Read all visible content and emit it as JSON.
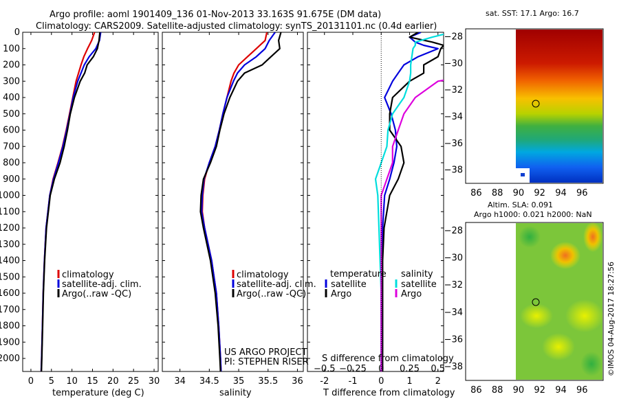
{
  "header": {
    "title_line1": "Argo profile: aoml 1901409_136 01-Nov-2013 33.163S 91.675E (DM data)",
    "title_line2": "Climatology: CARS2009. Satellite-adjusted climatology: synTS_20131101.nc (0.4d earlier)"
  },
  "colors": {
    "clim": "#dd0000",
    "sat": "#0000dd",
    "argo": "#000000",
    "sal_sat": "#00dddd",
    "sal_argo": "#dd00dd"
  },
  "chart_data": [
    {
      "type": "line",
      "id": "temperature",
      "xlabel": "temperature (deg C)",
      "ylabel": "",
      "xlim": [
        -2,
        31
      ],
      "ylim": [
        2080,
        0
      ],
      "xticks": [
        0,
        5,
        10,
        15,
        20,
        25,
        30
      ],
      "yticks": [
        0,
        100,
        200,
        300,
        400,
        500,
        600,
        700,
        800,
        900,
        1000,
        1100,
        1200,
        1300,
        1400,
        1500,
        1600,
        1700,
        1800,
        1900,
        2000
      ],
      "legend": [
        "climatology",
        "satellite-adj. clim.",
        "Argo(..raw -QC)"
      ],
      "depth": [
        0,
        50,
        100,
        150,
        200,
        250,
        300,
        400,
        500,
        600,
        700,
        800,
        900,
        1000,
        1200,
        1400,
        1600,
        1800,
        2000,
        2080
      ],
      "series": [
        {
          "name": "climatology",
          "color_key": "clim",
          "values": [
            15.5,
            14.8,
            13.8,
            12.9,
            12.2,
            11.6,
            11.0,
            10.2,
            9.4,
            8.6,
            7.7,
            6.6,
            5.4,
            4.6,
            3.7,
            3.3,
            3.0,
            2.8,
            2.6,
            2.5
          ]
        },
        {
          "name": "satellite-adj. clim.",
          "color_key": "sat",
          "values": [
            17.0,
            16.7,
            15.8,
            14.2,
            13.0,
            12.2,
            11.4,
            10.3,
            9.5,
            8.7,
            7.8,
            6.7,
            5.5,
            4.6,
            3.7,
            3.3,
            3.0,
            2.8,
            2.6,
            2.5
          ]
        },
        {
          "name": "Argo(..raw -QC)",
          "color_key": "argo",
          "values": [
            16.8,
            16.6,
            16.2,
            15.2,
            13.7,
            13.1,
            12.0,
            10.6,
            9.6,
            8.9,
            8.1,
            7.1,
            5.7,
            4.7,
            3.8,
            3.35,
            3.05,
            2.85,
            2.65,
            2.55
          ]
        }
      ]
    },
    {
      "type": "line",
      "id": "salinity",
      "xlabel": "salinity",
      "xlim": [
        33.7,
        36.1
      ],
      "ylim": [
        2080,
        0
      ],
      "xticks": [
        34,
        34.5,
        35,
        35.5,
        36
      ],
      "legend": [
        "climatology",
        "satellite-adj. clim.",
        "Argo(..raw -QC)"
      ],
      "depth": [
        0,
        50,
        100,
        150,
        200,
        250,
        300,
        400,
        500,
        600,
        700,
        800,
        900,
        1000,
        1100,
        1200,
        1400,
        1600,
        1800,
        2000,
        2080
      ],
      "series": [
        {
          "name": "climatology",
          "color_key": "clim",
          "values": [
            35.48,
            35.45,
            35.3,
            35.15,
            35.0,
            34.92,
            34.87,
            34.8,
            34.73,
            34.67,
            34.6,
            34.5,
            34.42,
            34.39,
            34.38,
            34.42,
            34.54,
            34.62,
            34.66,
            34.69,
            34.7
          ]
        },
        {
          "name": "satellite-adj. clim.",
          "color_key": "sat",
          "values": [
            35.62,
            35.52,
            35.45,
            35.3,
            35.1,
            34.98,
            34.91,
            34.8,
            34.73,
            34.67,
            34.6,
            34.5,
            34.41,
            34.38,
            34.37,
            34.42,
            34.54,
            34.62,
            34.66,
            34.69,
            34.7
          ]
        },
        {
          "name": "Argo(..raw -QC)",
          "color_key": "argo",
          "values": [
            35.72,
            35.68,
            35.7,
            35.55,
            35.4,
            35.1,
            34.98,
            34.85,
            34.75,
            34.68,
            34.62,
            34.52,
            34.4,
            34.36,
            34.35,
            34.4,
            34.52,
            34.6,
            34.65,
            34.68,
            34.69
          ]
        }
      ],
      "annotation_line1": "US ARGO PROJECT",
      "annotation_line2": "PI: STEPHEN RISER"
    },
    {
      "type": "line",
      "id": "difference",
      "xlabel": "T difference from climatology",
      "xlabel_top": "S difference from climatology",
      "xlim": [
        -2.6,
        2.2
      ],
      "ylim": [
        2080,
        0
      ],
      "xticks": [
        -2,
        -1,
        0,
        1,
        2
      ],
      "xticks_top": [
        -0.5,
        -0.25,
        0,
        0.25,
        0.5
      ],
      "legend_header_t": "temperature",
      "legend_header_s": "salinity",
      "legend": [
        "satellite",
        "Argo",
        "satellite",
        "Argo"
      ],
      "depth": [
        0,
        30,
        60,
        80,
        100,
        150,
        200,
        250,
        300,
        400,
        500,
        600,
        700,
        800,
        900,
        1000,
        1200,
        1400,
        1600,
        1800,
        2000,
        2080
      ],
      "series": [
        {
          "name": "T satellite",
          "color_key": "sat",
          "values": [
            1.4,
            1.0,
            1.2,
            1.5,
            2.0,
            1.3,
            0.8,
            0.6,
            0.4,
            0.12,
            0.35,
            0.5,
            0.55,
            0.45,
            0.3,
            0.12,
            0.05,
            0.02,
            0.0,
            0.0,
            0.0,
            0.0
          ]
        },
        {
          "name": "T Argo",
          "color_key": "argo",
          "values": [
            1.3,
            1.0,
            1.8,
            2.2,
            2.1,
            2.0,
            1.5,
            1.5,
            1.0,
            0.4,
            0.3,
            0.3,
            0.7,
            0.8,
            0.6,
            0.3,
            0.1,
            0.05,
            0.05,
            0.05,
            0.05,
            0.05
          ]
        },
        {
          "name": "S satellite",
          "color_key": "sal_sat",
          "values": [
            0.62,
            0.45,
            0.3,
            0.3,
            0.28,
            0.27,
            0.26,
            0.26,
            0.25,
            0.2,
            0.1,
            0.06,
            0.05,
            0.0,
            -0.05,
            -0.03,
            -0.02,
            -0.01,
            0.0,
            0.0,
            0.0,
            0.0
          ]
        },
        {
          "name": "S Argo",
          "color_key": "sal_argo",
          "values": [
            1.0,
            0.9,
            0.9,
            1.2,
            1.5,
            1.0,
            1.2,
            0.9,
            0.5,
            0.3,
            0.2,
            0.15,
            0.1,
            0.1,
            0.05,
            0.0,
            0.0,
            0.0,
            0.0,
            0.0,
            0.0,
            0.0
          ]
        }
      ]
    },
    {
      "type": "heatmap",
      "id": "sst_map",
      "title": "sat. SST: 17.1 Argo: 16.7",
      "xlim": [
        85,
        98
      ],
      "ylim": [
        -39,
        -27.4
      ],
      "xticks": [
        86,
        88,
        90,
        92,
        94,
        96
      ],
      "yticks": [
        -28,
        -30,
        -32,
        -34,
        -36,
        -38
      ],
      "data_xlim": [
        90,
        98
      ],
      "argo_position": [
        91.675,
        -33.163
      ]
    },
    {
      "type": "heatmap",
      "id": "sla_map",
      "title_line1": "Altim. SLA: 0.091",
      "title_line2": "Argo h1000: 0.021 h2000: NaN",
      "xlim": [
        85,
        98
      ],
      "ylim": [
        -39,
        -27.4
      ],
      "xticks": [
        86,
        88,
        90,
        92,
        94,
        96
      ],
      "yticks": [
        -28,
        -30,
        -32,
        -34,
        -36,
        -38
      ],
      "data_xlim": [
        90,
        98
      ],
      "argo_position": [
        91.675,
        -33.163
      ]
    }
  ],
  "footer": {
    "stamp": "©IMOS 04-Aug-2017 18:27:56"
  }
}
